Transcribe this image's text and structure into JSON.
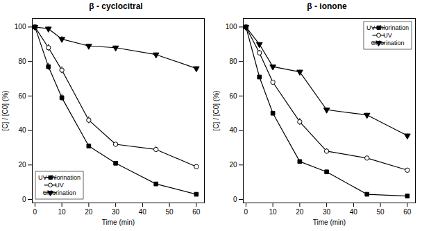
{
  "chart_data": [
    {
      "type": "line",
      "title": "β - cyclocitral",
      "xlabel": "Time (min)",
      "ylabel": "[C] / [C0] (%)",
      "xlim": [
        -1,
        63
      ],
      "ylim": [
        -2,
        105
      ],
      "xticks": [
        0,
        10,
        20,
        30,
        40,
        50,
        60
      ],
      "yticks": [
        0,
        20,
        40,
        60,
        80,
        100
      ],
      "grid": false,
      "legend": "lower left",
      "x": [
        0,
        5,
        10,
        20,
        30,
        45,
        60
      ],
      "series": [
        {
          "name": "UV-chlorination",
          "color": "black",
          "marker": "square",
          "line_style": "solid",
          "values": [
            100,
            77,
            59,
            31,
            21,
            9,
            3
          ],
          "yerr": [
            0,
            2,
            2,
            1,
            1,
            1,
            1
          ]
        },
        {
          "name": "UV",
          "color": "black",
          "marker": "circle-open",
          "line_style": "solid",
          "values": [
            100,
            88,
            75,
            46,
            32,
            29,
            19
          ],
          "yerr": [
            0,
            2,
            2,
            2,
            1,
            1.5,
            1
          ]
        },
        {
          "name": "Chlorination",
          "color": "black",
          "marker": "triangle-down",
          "line_style": "solid",
          "values": [
            100,
            99,
            93,
            89,
            88,
            84,
            76
          ],
          "yerr": [
            0,
            1,
            1.5,
            1,
            1,
            1,
            1
          ]
        }
      ]
    },
    {
      "type": "line",
      "title": "β - ionone",
      "xlabel": "Time (min)",
      "ylabel": "[C] / [C0] (%)",
      "xlim": [
        -1,
        63
      ],
      "ylim": [
        -2,
        105
      ],
      "xticks": [
        0,
        10,
        20,
        30,
        40,
        50,
        60
      ],
      "yticks": [
        0,
        20,
        40,
        60,
        80,
        100
      ],
      "grid": false,
      "legend": "upper right",
      "x": [
        0,
        5,
        10,
        20,
        30,
        45,
        60
      ],
      "series": [
        {
          "name": "UV-chlorination",
          "color": "black",
          "marker": "square",
          "line_style": "solid",
          "values": [
            100,
            71,
            50,
            22,
            16,
            3,
            2
          ],
          "yerr": [
            0,
            1,
            1,
            1,
            1,
            0.5,
            0.5
          ]
        },
        {
          "name": "UV",
          "color": "black",
          "marker": "circle-open",
          "line_style": "solid",
          "values": [
            100,
            85,
            68,
            45,
            28,
            24,
            17
          ],
          "yerr": [
            0,
            1.5,
            1,
            2,
            1.5,
            1,
            1
          ]
        },
        {
          "name": "Chlorination",
          "color": "black",
          "marker": "triangle-down",
          "line_style": "solid",
          "values": [
            100,
            90,
            77,
            74,
            52,
            49,
            37
          ],
          "yerr": [
            0,
            1,
            1,
            1,
            1,
            1,
            1
          ]
        }
      ]
    }
  ]
}
